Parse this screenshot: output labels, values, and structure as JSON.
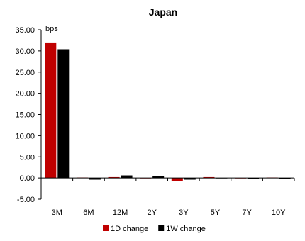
{
  "chart_data": {
    "type": "bar",
    "title": "Japan",
    "ylabel": "bps",
    "xlabel": "",
    "ylim": [
      -5.0,
      35.0
    ],
    "yticks": [
      -5.0,
      0.0,
      5.0,
      10.0,
      15.0,
      20.0,
      25.0,
      30.0,
      35.0
    ],
    "ytick_labels": [
      "-5.00",
      "0.00",
      "5.00",
      "10.00",
      "15.00",
      "20.00",
      "25.00",
      "30.00",
      "35.00"
    ],
    "categories": [
      "3M",
      "6M",
      "12M",
      "2Y",
      "3Y",
      "5Y",
      "7Y",
      "10Y"
    ],
    "series": [
      {
        "name": "1D change",
        "color": "#c00000",
        "values": [
          32.0,
          0.1,
          0.2,
          0.0,
          -0.8,
          0.2,
          -0.1,
          0.1
        ]
      },
      {
        "name": "1W change",
        "color": "#000000",
        "values": [
          30.4,
          -0.4,
          0.6,
          0.4,
          -0.4,
          -0.1,
          -0.3,
          -0.3
        ]
      }
    ],
    "legend_position": "bottom",
    "grid": false
  }
}
